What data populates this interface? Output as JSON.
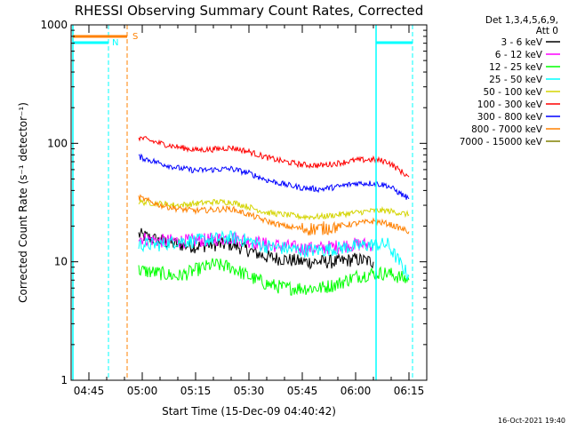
{
  "chart_data": {
    "type": "line",
    "title": "RHESSI Observing Summary Count Rates, Corrected",
    "xlabel": "Start Time (15-Dec-09 04:40:42)",
    "ylabel": "Corrected Count Rate (s⁻¹ detector⁻¹)",
    "ylog": true,
    "ylim": [
      1,
      1000
    ],
    "xlim": [
      "04:40",
      "06:20"
    ],
    "x_ticks": [
      "04:45",
      "05:00",
      "05:15",
      "05:30",
      "05:45",
      "06:00",
      "06:15"
    ],
    "y_ticks": [
      "1",
      "10",
      "100",
      "1000"
    ],
    "legend_header": [
      "Det 1,3,4,5,6,9,",
      "Att 0"
    ],
    "legend_position": "right",
    "footer": "16-Oct-2021 19:40",
    "series": [
      {
        "name": "3 - 6 keV",
        "color": "#000000",
        "x": [
          "04:59",
          "05:05",
          "05:10",
          "05:15",
          "05:20",
          "05:25",
          "05:30",
          "05:35",
          "05:40",
          "05:45",
          "05:50",
          "05:55",
          "06:00",
          "06:05"
        ],
        "y": [
          17,
          15,
          14,
          13.5,
          14,
          14,
          12.5,
          11,
          10.5,
          10,
          10,
          10,
          10.5,
          10
        ]
      },
      {
        "name": "6 - 12 keV",
        "color": "#ff00ff",
        "x": [
          "04:59",
          "05:05",
          "05:10",
          "05:15",
          "05:20",
          "05:25",
          "05:30",
          "05:35",
          "05:40",
          "05:45",
          "05:50",
          "05:55",
          "06:00",
          "06:05"
        ],
        "y": [
          16,
          15,
          15,
          15,
          15.5,
          16,
          15,
          14,
          13.5,
          13,
          13,
          13.5,
          14,
          14
        ]
      },
      {
        "name": "12 - 25 keV",
        "color": "#00ff00",
        "x": [
          "04:59",
          "05:05",
          "05:10",
          "05:15",
          "05:20",
          "05:25",
          "05:30",
          "05:35",
          "05:40",
          "05:45",
          "05:50",
          "05:55",
          "06:00",
          "06:05",
          "06:09",
          "06:15"
        ],
        "y": [
          8.5,
          8,
          7.5,
          8.5,
          9.5,
          9,
          7.5,
          6.5,
          6,
          6,
          6,
          6.5,
          7.5,
          8,
          8,
          7
        ]
      },
      {
        "name": "25 - 50 keV",
        "color": "#00ffff",
        "x": [
          "04:59",
          "05:05",
          "05:10",
          "05:15",
          "05:20",
          "05:25",
          "05:30",
          "05:35",
          "05:40",
          "05:45",
          "05:50",
          "05:55",
          "06:00",
          "06:05",
          "06:09",
          "06:15"
        ],
        "y": [
          14,
          14,
          15,
          15,
          15.5,
          16,
          15,
          13.5,
          13,
          12.5,
          12.5,
          13,
          13.5,
          14,
          14,
          7.5
        ]
      },
      {
        "name": "50 - 100 keV",
        "color": "#d4d400",
        "x": [
          "04:59",
          "05:05",
          "05:10",
          "05:15",
          "05:20",
          "05:25",
          "05:30",
          "05:35",
          "05:40",
          "05:45",
          "05:50",
          "05:55",
          "06:00",
          "06:05",
          "06:09",
          "06:15"
        ],
        "y": [
          32,
          31,
          30,
          31,
          32,
          32,
          29,
          26,
          25,
          24,
          24,
          25,
          26,
          27,
          27,
          25
        ]
      },
      {
        "name": "100 - 300 keV",
        "color": "#ff0000",
        "x": [
          "04:59",
          "05:05",
          "05:10",
          "05:15",
          "05:20",
          "05:25",
          "05:30",
          "05:35",
          "05:40",
          "05:45",
          "05:50",
          "05:55",
          "06:00",
          "06:05",
          "06:09",
          "06:15"
        ],
        "y": [
          112,
          100,
          93,
          88,
          89,
          92,
          85,
          76,
          70,
          66,
          65,
          68,
          72,
          73,
          70,
          52
        ]
      },
      {
        "name": "300 - 800 keV",
        "color": "#0000ff",
        "x": [
          "04:59",
          "05:05",
          "05:10",
          "05:15",
          "05:20",
          "05:25",
          "05:30",
          "05:35",
          "05:40",
          "05:45",
          "05:50",
          "05:55",
          "06:00",
          "06:05",
          "06:09",
          "06:15"
        ],
        "y": [
          77,
          68,
          62,
          59,
          60,
          61,
          56,
          49,
          45,
          42,
          41,
          43,
          46,
          46,
          44,
          34
        ]
      },
      {
        "name": "800 - 7000 keV",
        "color": "#ff8000",
        "x": [
          "04:59",
          "05:05",
          "05:10",
          "05:15",
          "05:20",
          "05:25",
          "05:30",
          "05:35",
          "05:40",
          "05:45",
          "05:50",
          "05:55",
          "06:00",
          "06:05",
          "06:09",
          "06:15"
        ],
        "y": [
          35,
          30,
          28,
          27,
          27.5,
          28,
          25,
          22,
          20,
          19,
          19,
          20,
          21,
          22,
          21,
          18
        ]
      },
      {
        "name": "7000 - 15000 keV",
        "color": "#808000",
        "x": [],
        "y": []
      }
    ],
    "flag_labels": [
      "S",
      "N"
    ],
    "flag_colors": {
      "S": "#ff8000",
      "N": "#00ffff"
    }
  }
}
